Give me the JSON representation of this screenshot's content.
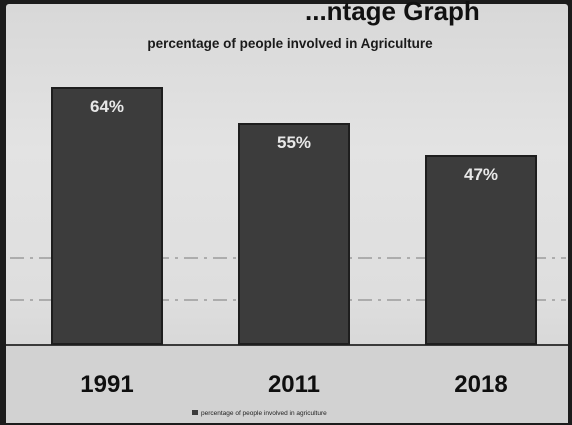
{
  "header_text": "...ntage Graph",
  "chart_data": {
    "type": "bar",
    "title": "percentage of people involved in Agriculture",
    "categories": [
      "1991",
      "2011",
      "2018"
    ],
    "values": [
      64,
      55,
      47
    ],
    "data_labels": [
      "64%",
      "55%",
      "47%"
    ],
    "ylim": [
      0,
      70
    ],
    "grid": true,
    "legend": {
      "placement": "bottom",
      "entries": [
        {
          "name": "percentage of people involved in agriculture"
        }
      ]
    },
    "colors": {
      "bar": "#3c3c3c",
      "bar_edge": "#1e1e1e"
    }
  }
}
